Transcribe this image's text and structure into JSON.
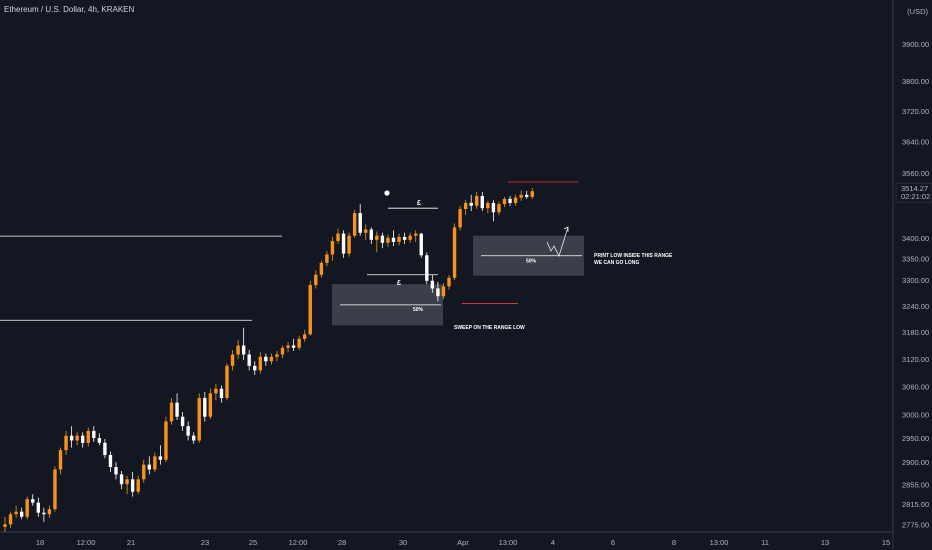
{
  "header": {
    "symbol_title": "Ethereum / U.S. Dollar, 4h, KRAKEN"
  },
  "price_axis": {
    "currency_label": "(USD)",
    "ticks": [
      "3900.00",
      "3800.00",
      "3720.00",
      "3640.00",
      "3560.00",
      "3400.00",
      "3350.00",
      "3300.00",
      "3240.00",
      "3180.00",
      "3120.00",
      "3060.00",
      "3000.00",
      "2950.00",
      "2900.00",
      "2855.00",
      "2815.00",
      "2775.00"
    ],
    "last_price": "3514.27",
    "countdown": "02:21:02",
    "last_price_color": "#ffffff"
  },
  "time_axis": {
    "ticks": [
      "18",
      "12:00",
      "21",
      "23",
      "25",
      "12:00",
      "28",
      "30",
      "Apr",
      "13:00",
      "4",
      "6",
      "8",
      "13:00",
      "11",
      "13",
      "15"
    ]
  },
  "annotations": {
    "range_low_note": "SWEEP ON THE RANGE LOW",
    "long_note_line1": "PRINT LOW INSIDE THIS RANGE",
    "long_note_line2": "WE CAN GO LONG",
    "mid_label_1": "50%",
    "mid_label_2": "50%",
    "level_label_top": "£",
    "level_label_bottom": "£"
  },
  "colors": {
    "background": "#131722",
    "bullish_candle": "#f7931a",
    "bearish_candle": "#ffffff",
    "zone_fill": "#5d606b",
    "range_line": "#f23645",
    "grid": "none"
  },
  "chart_data": {
    "type": "candlestick",
    "title": "Ethereum / U.S. Dollar, 4h, KRAKEN",
    "ylabel": "(USD)",
    "y_scale": "log",
    "ylim": [
      2760,
      3990
    ],
    "grid": false,
    "x_ticks": [
      "18",
      "12:00",
      "21",
      "23",
      "25",
      "12:00",
      "28",
      "30",
      "Apr",
      "13:00",
      "4",
      "6",
      "8",
      "13:00",
      "11",
      "13",
      "15"
    ],
    "candles": [
      {
        "o": 2770,
        "h": 2790,
        "l": 2760,
        "c": 2775
      },
      {
        "o": 2775,
        "h": 2800,
        "l": 2768,
        "c": 2795
      },
      {
        "o": 2795,
        "h": 2812,
        "l": 2788,
        "c": 2800
      },
      {
        "o": 2800,
        "h": 2808,
        "l": 2785,
        "c": 2790
      },
      {
        "o": 2790,
        "h": 2830,
        "l": 2785,
        "c": 2825
      },
      {
        "o": 2825,
        "h": 2835,
        "l": 2812,
        "c": 2818
      },
      {
        "o": 2818,
        "h": 2828,
        "l": 2790,
        "c": 2798
      },
      {
        "o": 2798,
        "h": 2808,
        "l": 2780,
        "c": 2795
      },
      {
        "o": 2795,
        "h": 2812,
        "l": 2788,
        "c": 2805
      },
      {
        "o": 2805,
        "h": 2892,
        "l": 2800,
        "c": 2885
      },
      {
        "o": 2885,
        "h": 2930,
        "l": 2875,
        "c": 2925
      },
      {
        "o": 2925,
        "h": 2965,
        "l": 2915,
        "c": 2955
      },
      {
        "o": 2955,
        "h": 2975,
        "l": 2930,
        "c": 2945
      },
      {
        "o": 2945,
        "h": 2962,
        "l": 2935,
        "c": 2955
      },
      {
        "o": 2955,
        "h": 2962,
        "l": 2930,
        "c": 2940
      },
      {
        "o": 2940,
        "h": 2972,
        "l": 2932,
        "c": 2965
      },
      {
        "o": 2965,
        "h": 2975,
        "l": 2942,
        "c": 2950
      },
      {
        "o": 2950,
        "h": 2960,
        "l": 2935,
        "c": 2940
      },
      {
        "o": 2940,
        "h": 2948,
        "l": 2908,
        "c": 2915
      },
      {
        "o": 2915,
        "h": 2922,
        "l": 2880,
        "c": 2890
      },
      {
        "o": 2890,
        "h": 2900,
        "l": 2865,
        "c": 2875
      },
      {
        "o": 2875,
        "h": 2882,
        "l": 2845,
        "c": 2855
      },
      {
        "o": 2855,
        "h": 2872,
        "l": 2835,
        "c": 2865
      },
      {
        "o": 2865,
        "h": 2880,
        "l": 2830,
        "c": 2840
      },
      {
        "o": 2840,
        "h": 2872,
        "l": 2835,
        "c": 2865
      },
      {
        "o": 2865,
        "h": 2905,
        "l": 2858,
        "c": 2895
      },
      {
        "o": 2895,
        "h": 2912,
        "l": 2875,
        "c": 2885
      },
      {
        "o": 2885,
        "h": 2920,
        "l": 2880,
        "c": 2912
      },
      {
        "o": 2912,
        "h": 2935,
        "l": 2895,
        "c": 2905
      },
      {
        "o": 2905,
        "h": 2995,
        "l": 2900,
        "c": 2985
      },
      {
        "o": 2985,
        "h": 3035,
        "l": 2978,
        "c": 3025
      },
      {
        "o": 3025,
        "h": 3045,
        "l": 2988,
        "c": 2995
      },
      {
        "o": 2995,
        "h": 3005,
        "l": 2965,
        "c": 2975
      },
      {
        "o": 2975,
        "h": 2985,
        "l": 2945,
        "c": 2955
      },
      {
        "o": 2955,
        "h": 2962,
        "l": 2938,
        "c": 2945
      },
      {
        "o": 2945,
        "h": 3045,
        "l": 2940,
        "c": 3035
      },
      {
        "o": 3035,
        "h": 3048,
        "l": 2985,
        "c": 2995
      },
      {
        "o": 2995,
        "h": 3055,
        "l": 2990,
        "c": 3045
      },
      {
        "o": 3045,
        "h": 3065,
        "l": 3030,
        "c": 3055
      },
      {
        "o": 3055,
        "h": 3062,
        "l": 3025,
        "c": 3035
      },
      {
        "o": 3035,
        "h": 3110,
        "l": 3030,
        "c": 3105
      },
      {
        "o": 3105,
        "h": 3140,
        "l": 3095,
        "c": 3130
      },
      {
        "o": 3130,
        "h": 3162,
        "l": 3120,
        "c": 3150
      },
      {
        "o": 3150,
        "h": 3190,
        "l": 3118,
        "c": 3130
      },
      {
        "o": 3130,
        "h": 3140,
        "l": 3095,
        "c": 3105
      },
      {
        "o": 3105,
        "h": 3115,
        "l": 3085,
        "c": 3095
      },
      {
        "o": 3095,
        "h": 3135,
        "l": 3088,
        "c": 3125
      },
      {
        "o": 3125,
        "h": 3132,
        "l": 3105,
        "c": 3115
      },
      {
        "o": 3115,
        "h": 3132,
        "l": 3108,
        "c": 3125
      },
      {
        "o": 3125,
        "h": 3138,
        "l": 3115,
        "c": 3130
      },
      {
        "o": 3130,
        "h": 3150,
        "l": 3122,
        "c": 3145
      },
      {
        "o": 3145,
        "h": 3158,
        "l": 3135,
        "c": 3150
      },
      {
        "o": 3150,
        "h": 3165,
        "l": 3138,
        "c": 3145
      },
      {
        "o": 3145,
        "h": 3172,
        "l": 3140,
        "c": 3165
      },
      {
        "o": 3165,
        "h": 3185,
        "l": 3158,
        "c": 3175
      },
      {
        "o": 3175,
        "h": 3298,
        "l": 3172,
        "c": 3288
      },
      {
        "o": 3288,
        "h": 3322,
        "l": 3280,
        "c": 3312
      },
      {
        "o": 3312,
        "h": 3345,
        "l": 3305,
        "c": 3340
      },
      {
        "o": 3340,
        "h": 3368,
        "l": 3332,
        "c": 3360
      },
      {
        "o": 3360,
        "h": 3402,
        "l": 3345,
        "c": 3392
      },
      {
        "o": 3392,
        "h": 3422,
        "l": 3385,
        "c": 3410
      },
      {
        "o": 3410,
        "h": 3418,
        "l": 3352,
        "c": 3362
      },
      {
        "o": 3362,
        "h": 3412,
        "l": 3355,
        "c": 3405
      },
      {
        "o": 3405,
        "h": 3468,
        "l": 3400,
        "c": 3460
      },
      {
        "o": 3460,
        "h": 3482,
        "l": 3405,
        "c": 3412
      },
      {
        "o": 3412,
        "h": 3432,
        "l": 3395,
        "c": 3420
      },
      {
        "o": 3420,
        "h": 3425,
        "l": 3385,
        "c": 3395
      },
      {
        "o": 3395,
        "h": 3415,
        "l": 3365,
        "c": 3405
      },
      {
        "o": 3405,
        "h": 3412,
        "l": 3375,
        "c": 3388
      },
      {
        "o": 3388,
        "h": 3408,
        "l": 3378,
        "c": 3400
      },
      {
        "o": 3400,
        "h": 3418,
        "l": 3380,
        "c": 3390
      },
      {
        "o": 3390,
        "h": 3410,
        "l": 3382,
        "c": 3402
      },
      {
        "o": 3402,
        "h": 3412,
        "l": 3385,
        "c": 3395
      },
      {
        "o": 3395,
        "h": 3412,
        "l": 3388,
        "c": 3405
      },
      {
        "o": 3405,
        "h": 3418,
        "l": 3390,
        "c": 3410
      },
      {
        "o": 3410,
        "h": 3412,
        "l": 3352,
        "c": 3358
      },
      {
        "o": 3358,
        "h": 3365,
        "l": 3290,
        "c": 3298
      },
      {
        "o": 3298,
        "h": 3312,
        "l": 3270,
        "c": 3280
      },
      {
        "o": 3280,
        "h": 3295,
        "l": 3250,
        "c": 3262
      },
      {
        "o": 3262,
        "h": 3292,
        "l": 3255,
        "c": 3285
      },
      {
        "o": 3285,
        "h": 3312,
        "l": 3278,
        "c": 3305
      },
      {
        "o": 3305,
        "h": 3435,
        "l": 3300,
        "c": 3425
      },
      {
        "o": 3425,
        "h": 3478,
        "l": 3418,
        "c": 3470
      },
      {
        "o": 3470,
        "h": 3492,
        "l": 3455,
        "c": 3485
      },
      {
        "o": 3485,
        "h": 3505,
        "l": 3465,
        "c": 3478
      },
      {
        "o": 3478,
        "h": 3512,
        "l": 3470,
        "c": 3502
      },
      {
        "o": 3502,
        "h": 3512,
        "l": 3465,
        "c": 3472
      },
      {
        "o": 3472,
        "h": 3490,
        "l": 3460,
        "c": 3485
      },
      {
        "o": 3485,
        "h": 3492,
        "l": 3440,
        "c": 3462
      },
      {
        "o": 3462,
        "h": 3488,
        "l": 3455,
        "c": 3482
      },
      {
        "o": 3482,
        "h": 3500,
        "l": 3475,
        "c": 3495
      },
      {
        "o": 3495,
        "h": 3502,
        "l": 3478,
        "c": 3485
      },
      {
        "o": 3485,
        "h": 3505,
        "l": 3478,
        "c": 3498
      },
      {
        "o": 3498,
        "h": 3516,
        "l": 3490,
        "c": 3505
      },
      {
        "o": 3505,
        "h": 3515,
        "l": 3495,
        "c": 3500
      },
      {
        "o": 3500,
        "h": 3522,
        "l": 3495,
        "c": 3514
      }
    ],
    "levels": [
      {
        "price": 3404,
        "kind": "horizontal line"
      },
      {
        "price": 3207,
        "kind": "horizontal line"
      },
      {
        "price": 3472,
        "kind": "range high"
      },
      {
        "price": 3312,
        "kind": "range low"
      },
      {
        "price": 3537,
        "kind": "recent high"
      },
      {
        "price": 3250,
        "kind": "range low sweep"
      }
    ],
    "zones": [
      {
        "top": 3290,
        "bottom": 3195,
        "mid": 3242,
        "label": "50%"
      },
      {
        "top": 3405,
        "bottom": 3310,
        "mid": 3357,
        "label": "50%"
      }
    ]
  }
}
